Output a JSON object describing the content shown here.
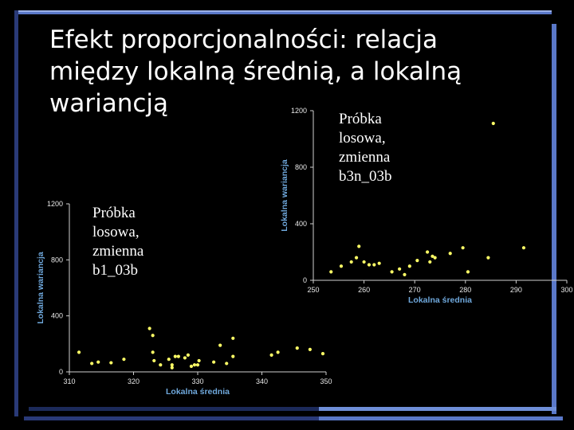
{
  "slide": {
    "title": "Efekt proporcjonalności: relacja między lokalną średnią, a lokalną wariancją",
    "caption_left": "Próbka\nlosowa,\nzmienna\nb1_03b",
    "caption_right": "Próbka\nlosowa,\nzmienna\nb3n_03b",
    "colors": {
      "background": "#000000",
      "frame_dark": "#1c2a5a",
      "frame_light": "#6f8fd8",
      "points": "#ffff66",
      "axis_title": "#6fa8dc"
    }
  },
  "chart_data": [
    {
      "type": "scatter",
      "title": "",
      "xlabel": "Lokalna średnia",
      "ylabel": "Lokalna wariancja",
      "xlim": [
        310,
        350
      ],
      "ylim": [
        0,
        1200
      ],
      "xticks": [
        310,
        320,
        330,
        340,
        350
      ],
      "yticks": [
        0,
        400,
        800,
        1200
      ],
      "points": [
        [
          311.5,
          140
        ],
        [
          313.5,
          60
        ],
        [
          314.5,
          70
        ],
        [
          316.5,
          65
        ],
        [
          318.5,
          90
        ],
        [
          322.5,
          310
        ],
        [
          323.0,
          260
        ],
        [
          323.0,
          140
        ],
        [
          323.2,
          80
        ],
        [
          324.2,
          50
        ],
        [
          325.5,
          90
        ],
        [
          326.0,
          30
        ],
        [
          326.0,
          50
        ],
        [
          326.5,
          110
        ],
        [
          327.0,
          110
        ],
        [
          328.0,
          100
        ],
        [
          328.5,
          120
        ],
        [
          329.0,
          40
        ],
        [
          329.5,
          50
        ],
        [
          330.0,
          50
        ],
        [
          330.2,
          80
        ],
        [
          332.5,
          70
        ],
        [
          333.5,
          190
        ],
        [
          334.5,
          60
        ],
        [
          335.5,
          240
        ],
        [
          335.5,
          110
        ],
        [
          341.5,
          120
        ],
        [
          342.5,
          140
        ],
        [
          345.5,
          170
        ],
        [
          347.5,
          160
        ],
        [
          349.5,
          130
        ]
      ]
    },
    {
      "type": "scatter",
      "title": "",
      "xlabel": "Lokalna średnia",
      "ylabel": "Lokalna wariancja",
      "xlim": [
        250,
        300
      ],
      "ylim": [
        0,
        1200
      ],
      "xticks": [
        250,
        260,
        270,
        280,
        290,
        300
      ],
      "yticks": [
        0,
        400,
        800,
        1200
      ],
      "points": [
        [
          253.5,
          60
        ],
        [
          255.5,
          100
        ],
        [
          257.5,
          130
        ],
        [
          258.5,
          160
        ],
        [
          259.0,
          240
        ],
        [
          260.0,
          130
        ],
        [
          261.0,
          110
        ],
        [
          262.0,
          110
        ],
        [
          263.0,
          120
        ],
        [
          265.5,
          60
        ],
        [
          267.0,
          80
        ],
        [
          268.0,
          40
        ],
        [
          269.0,
          100
        ],
        [
          270.5,
          140
        ],
        [
          272.5,
          200
        ],
        [
          273.0,
          130
        ],
        [
          273.5,
          170
        ],
        [
          274.0,
          160
        ],
        [
          277.0,
          190
        ],
        [
          279.5,
          230
        ],
        [
          280.5,
          60
        ],
        [
          284.5,
          160
        ],
        [
          285.5,
          1110
        ],
        [
          291.5,
          230
        ]
      ]
    }
  ]
}
